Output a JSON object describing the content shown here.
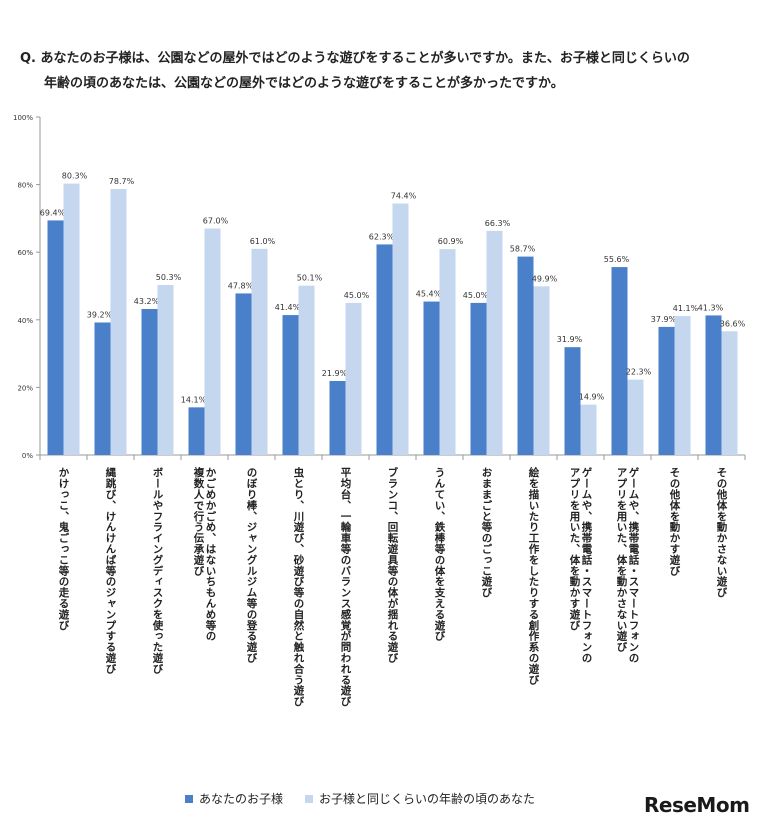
{
  "question": {
    "line1": "Q. あなたのお子様は、公園などの屋外ではどのような遊びをすることが多いですか。また、お子様と同じくらいの",
    "line2": "年齢の頃のあなたは、公園などの屋外ではどのような遊びをすることが多かったですか。"
  },
  "chart_data": {
    "type": "bar",
    "ylim": [
      0,
      100
    ],
    "yticks": [
      "0%",
      "20%",
      "40%",
      "60%",
      "80%",
      "100%"
    ],
    "ytick_values": [
      0,
      20,
      40,
      60,
      80,
      100
    ],
    "grid": false,
    "legend_placement": "bottom",
    "categories": [
      "かけっこ、鬼ごっこ等の走る遊び",
      "縄跳び、けんけんぱ等のジャンプする遊び",
      "ボールやフライングディスクを使った遊び",
      "かごめかごめ、はないちもんめ等の複数人で行う伝承遊び",
      "のぼり棒、ジャングルジム等の登る遊び",
      "虫とり、川遊び、砂遊び等の自然と触れ合う遊び",
      "平均台、一輪車等のバランス感覚が問われる遊び",
      "ブランコ、回転遊具等の体が揺れる遊び",
      "うんてい、鉄棒等の体を支える遊び",
      "おままごと等のごっこ遊び",
      "絵を描いたり工作をしたりする創作系の遊び",
      "ゲームや、携帯電話・スマートフォンのアプリを用いた、体を動かす遊び",
      "ゲームや、携帯電話・スマートフォンのアプリを用いた、体を動かさない遊び",
      "その他体を動かす遊び",
      "その他体を動かさない遊び"
    ],
    "category_lines": [
      [
        "かけっこ、鬼ごっこ等の走る遊び"
      ],
      [
        "縄跳び、けんけんぱ等のジャンプする遊び"
      ],
      [
        "ボールやフライングディスクを使った遊び"
      ],
      [
        "かごめかごめ、はないちもんめ等の",
        "複数人で行う伝承遊び"
      ],
      [
        "のぼり棒、ジャングルジム等の登る遊び"
      ],
      [
        "虫とり、川遊び、砂遊び等の自然と触れ合う遊び"
      ],
      [
        "平均台、一輪車等のバランス感覚が問われる遊び"
      ],
      [
        "ブランコ、回転遊具等の体が揺れる遊び"
      ],
      [
        "うんてい、鉄棒等の体を支える遊び"
      ],
      [
        "おままごと等のごっこ遊び"
      ],
      [
        "絵を描いたり工作をしたりする創作系の遊び"
      ],
      [
        "ゲームや、携帯電話・スマートフォンの",
        "アプリを用いた、体を動かす遊び"
      ],
      [
        "ゲームや、携帯電話・スマートフォンの",
        "アプリを用いた、体を動かさない遊び"
      ],
      [
        "その他体を動かす遊び"
      ],
      [
        "その他体を動かさない遊び"
      ]
    ],
    "series": [
      {
        "name": "あなたのお子様",
        "color": "#4a7fc9",
        "values": [
          69.4,
          39.2,
          43.2,
          14.1,
          47.8,
          41.4,
          21.9,
          62.3,
          45.4,
          45.0,
          58.7,
          31.9,
          55.6,
          37.9,
          41.3
        ],
        "labels": [
          "69.4%",
          "39.2%",
          "43.2%",
          "14.1%",
          "47.8%",
          "41.4%",
          "21.9%",
          "62.3%",
          "45.4%",
          "45.0%",
          "58.7%",
          "31.9%",
          "55.6%",
          "37.9%",
          "41.3%"
        ]
      },
      {
        "name": "お子様と同じくらいの年齢の頃のあなた",
        "color": "#c5d6ef",
        "values": [
          80.3,
          78.7,
          50.3,
          67.0,
          61.0,
          50.1,
          45.0,
          74.4,
          60.9,
          66.3,
          49.9,
          14.9,
          22.3,
          41.1,
          36.6
        ],
        "labels": [
          "80.3%",
          "78.7%",
          "50.3%",
          "67.0%",
          "61.0%",
          "50.1%",
          "45.0%",
          "74.4%",
          "60.9%",
          "66.3%",
          "49.9%",
          "14.9%",
          "22.3%",
          "41.1%",
          "36.6%"
        ]
      }
    ]
  },
  "legend": {
    "series1": "あなたのお子様",
    "series2": "お子様と同じくらいの年齢の頃のあなた",
    "color1": "#4a7fc9",
    "color2": "#c5d6ef"
  },
  "watermark": {
    "text": "ReseMom"
  }
}
